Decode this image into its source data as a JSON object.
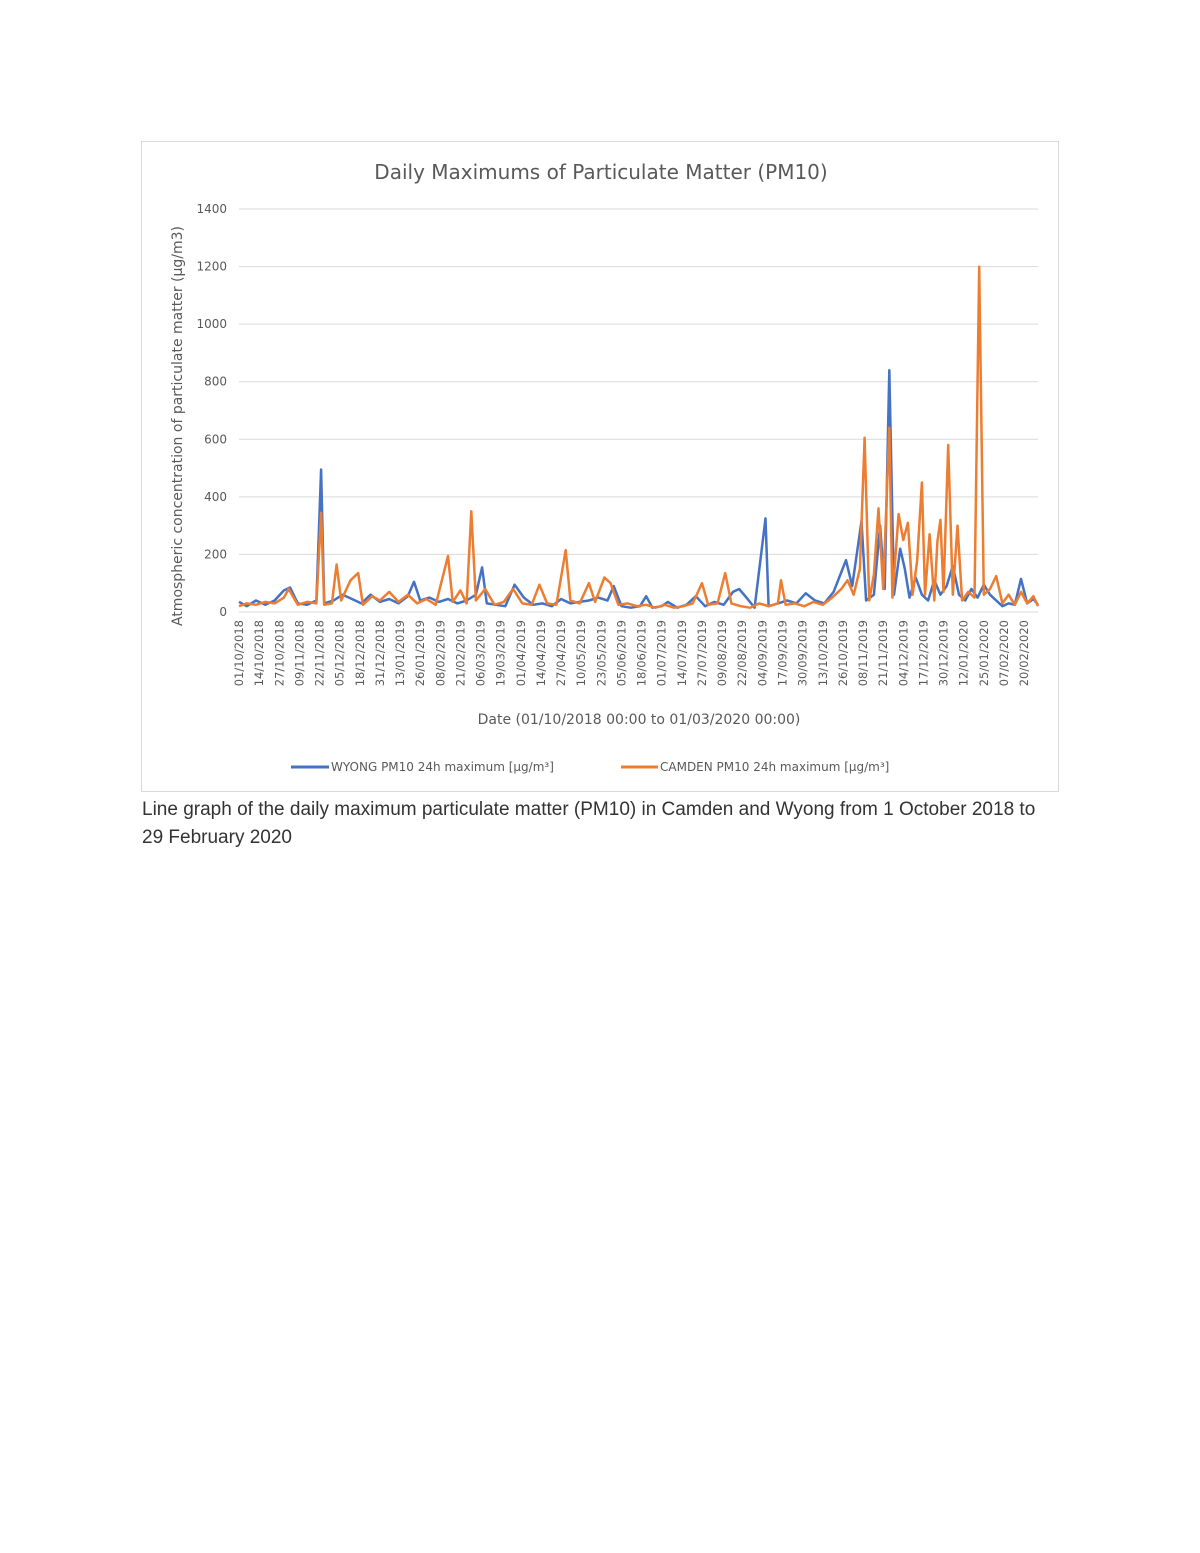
{
  "caption": "Line graph of the daily maximum particulate matter (PM10) in Camden and Wyong from 1 October 2018 to 29 February 2020",
  "chart_data": {
    "type": "line",
    "title": "Daily Maximums of Particulate Matter (PM10)",
    "xlabel": "Date (01/10/2018 00:00 to 01/03/2020 00:00)",
    "ylabel": "Atmospheric concentration of particulate matter (µg/m3)",
    "xlim": [
      "01/10/2018",
      "29/02/2020"
    ],
    "ylim": [
      0,
      1400
    ],
    "yticks": [
      0,
      200,
      400,
      600,
      800,
      1000,
      1200,
      1400
    ],
    "xtick_labels": [
      "01/10/2018",
      "14/10/2018",
      "27/10/2018",
      "09/11/2018",
      "22/11/2018",
      "05/12/2018",
      "18/12/2018",
      "31/12/2018",
      "13/01/2019",
      "26/01/2019",
      "08/02/2019",
      "21/02/2019",
      "06/03/2019",
      "19/03/2019",
      "01/04/2019",
      "14/04/2019",
      "27/04/2019",
      "10/05/2019",
      "23/05/2019",
      "05/06/2019",
      "18/06/2019",
      "01/07/2019",
      "14/07/2019",
      "27/07/2019",
      "09/08/2019",
      "22/08/2019",
      "04/09/2019",
      "17/09/2019",
      "30/09/2019",
      "13/10/2019",
      "26/10/2019",
      "08/11/2019",
      "21/11/2019",
      "04/12/2019",
      "17/12/2019",
      "30/12/2019",
      "12/01/2020",
      "25/01/2020",
      "07/02/2020",
      "20/02/2020"
    ],
    "grid": true,
    "legend_position": "bottom",
    "series": [
      {
        "name": "WYONG PM10 24h maximum [µg/m³]",
        "color": "#4472c4",
        "points": [
          [
            "01/10/2018",
            35
          ],
          [
            "06/10/2018",
            20
          ],
          [
            "12/10/2018",
            40
          ],
          [
            "18/10/2018",
            25
          ],
          [
            "24/10/2018",
            40
          ],
          [
            "30/10/2018",
            75
          ],
          [
            "03/11/2018",
            85
          ],
          [
            "08/11/2018",
            30
          ],
          [
            "14/11/2018",
            25
          ],
          [
            "20/11/2018",
            40
          ],
          [
            "23/11/2018",
            495
          ],
          [
            "25/11/2018",
            30
          ],
          [
            "01/12/2018",
            40
          ],
          [
            "07/12/2018",
            60
          ],
          [
            "13/12/2018",
            45
          ],
          [
            "19/12/2018",
            30
          ],
          [
            "25/12/2018",
            60
          ],
          [
            "31/12/2018",
            35
          ],
          [
            "06/01/2019",
            45
          ],
          [
            "12/01/2019",
            30
          ],
          [
            "18/01/2019",
            55
          ],
          [
            "22/01/2019",
            105
          ],
          [
            "26/01/2019",
            40
          ],
          [
            "01/02/2019",
            50
          ],
          [
            "07/02/2019",
            35
          ],
          [
            "13/02/2019",
            45
          ],
          [
            "19/02/2019",
            30
          ],
          [
            "25/02/2019",
            40
          ],
          [
            "03/03/2019",
            60
          ],
          [
            "07/03/2019",
            155
          ],
          [
            "10/03/2019",
            30
          ],
          [
            "16/03/2019",
            25
          ],
          [
            "22/03/2019",
            20
          ],
          [
            "28/03/2019",
            95
          ],
          [
            "03/04/2019",
            50
          ],
          [
            "09/04/2019",
            25
          ],
          [
            "15/04/2019",
            30
          ],
          [
            "21/04/2019",
            20
          ],
          [
            "27/04/2019",
            45
          ],
          [
            "03/05/2019",
            30
          ],
          [
            "09/05/2019",
            35
          ],
          [
            "15/05/2019",
            40
          ],
          [
            "21/05/2019",
            50
          ],
          [
            "27/05/2019",
            40
          ],
          [
            "31/05/2019",
            90
          ],
          [
            "05/06/2019",
            20
          ],
          [
            "11/06/2019",
            15
          ],
          [
            "17/06/2019",
            20
          ],
          [
            "21/06/2019",
            55
          ],
          [
            "25/06/2019",
            15
          ],
          [
            "01/07/2019",
            20
          ],
          [
            "05/07/2019",
            35
          ],
          [
            "11/07/2019",
            15
          ],
          [
            "17/07/2019",
            25
          ],
          [
            "23/07/2019",
            55
          ],
          [
            "29/07/2019",
            20
          ],
          [
            "04/08/2019",
            35
          ],
          [
            "10/08/2019",
            25
          ],
          [
            "16/08/2019",
            70
          ],
          [
            "20/08/2019",
            80
          ],
          [
            "24/08/2019",
            55
          ],
          [
            "30/08/2019",
            15
          ],
          [
            "06/09/2019",
            325
          ],
          [
            "08/09/2019",
            20
          ],
          [
            "14/09/2019",
            30
          ],
          [
            "20/09/2019",
            40
          ],
          [
            "26/09/2019",
            30
          ],
          [
            "02/10/2019",
            65
          ],
          [
            "08/10/2019",
            40
          ],
          [
            "14/10/2019",
            30
          ],
          [
            "20/10/2019",
            70
          ],
          [
            "24/10/2019",
            125
          ],
          [
            "28/10/2019",
            180
          ],
          [
            "01/11/2019",
            90
          ],
          [
            "07/11/2019",
            315
          ],
          [
            "10/11/2019",
            40
          ],
          [
            "15/11/2019",
            60
          ],
          [
            "19/11/2019",
            300
          ],
          [
            "22/11/2019",
            80
          ],
          [
            "25/11/2019",
            840
          ],
          [
            "28/11/2019",
            60
          ],
          [
            "02/12/2019",
            220
          ],
          [
            "05/12/2019",
            150
          ],
          [
            "08/12/2019",
            50
          ],
          [
            "12/12/2019",
            120
          ],
          [
            "16/12/2019",
            60
          ],
          [
            "20/12/2019",
            40
          ],
          [
            "24/12/2019",
            110
          ],
          [
            "28/12/2019",
            60
          ],
          [
            "01/01/2020",
            90
          ],
          [
            "05/01/2020",
            160
          ],
          [
            "09/01/2020",
            60
          ],
          [
            "13/01/2020",
            40
          ],
          [
            "17/01/2020",
            80
          ],
          [
            "21/01/2020",
            50
          ],
          [
            "25/01/2020",
            95
          ],
          [
            "29/01/2020",
            60
          ],
          [
            "02/02/2020",
            40
          ],
          [
            "06/02/2020",
            20
          ],
          [
            "10/02/2020",
            30
          ],
          [
            "14/02/2020",
            25
          ],
          [
            "18/02/2020",
            115
          ],
          [
            "22/02/2020",
            30
          ],
          [
            "26/02/2020",
            45
          ],
          [
            "29/02/2020",
            25
          ]
        ]
      },
      {
        "name": "CAMDEN PM10 24h maximum [µg/m³]",
        "color": "#ed7d31",
        "points": [
          [
            "01/10/2018",
            20
          ],
          [
            "06/10/2018",
            30
          ],
          [
            "12/10/2018",
            25
          ],
          [
            "18/10/2018",
            35
          ],
          [
            "24/10/2018",
            30
          ],
          [
            "30/10/2018",
            50
          ],
          [
            "02/11/2018",
            80
          ],
          [
            "08/11/2018",
            25
          ],
          [
            "14/11/2018",
            35
          ],
          [
            "20/11/2018",
            30
          ],
          [
            "23/11/2018",
            345
          ],
          [
            "25/11/2018",
            25
          ],
          [
            "30/11/2018",
            30
          ],
          [
            "03/12/2018",
            165
          ],
          [
            "06/12/2018",
            40
          ],
          [
            "12/12/2018",
            110
          ],
          [
            "17/12/2018",
            135
          ],
          [
            "20/12/2018",
            25
          ],
          [
            "26/12/2018",
            55
          ],
          [
            "31/12/2018",
            40
          ],
          [
            "06/01/2019",
            70
          ],
          [
            "12/01/2019",
            35
          ],
          [
            "18/01/2019",
            60
          ],
          [
            "24/01/2019",
            30
          ],
          [
            "30/01/2019",
            45
          ],
          [
            "05/02/2019",
            25
          ],
          [
            "13/02/2019",
            195
          ],
          [
            "16/02/2019",
            35
          ],
          [
            "21/02/2019",
            75
          ],
          [
            "25/02/2019",
            30
          ],
          [
            "28/02/2019",
            350
          ],
          [
            "03/03/2019",
            40
          ],
          [
            "09/03/2019",
            80
          ],
          [
            "15/03/2019",
            25
          ],
          [
            "21/03/2019",
            35
          ],
          [
            "27/03/2019",
            80
          ],
          [
            "02/04/2019",
            30
          ],
          [
            "08/04/2019",
            25
          ],
          [
            "13/04/2019",
            95
          ],
          [
            "18/04/2019",
            30
          ],
          [
            "24/04/2019",
            25
          ],
          [
            "30/04/2019",
            215
          ],
          [
            "03/05/2019",
            40
          ],
          [
            "09/05/2019",
            30
          ],
          [
            "15/05/2019",
            100
          ],
          [
            "19/05/2019",
            35
          ],
          [
            "25/05/2019",
            120
          ],
          [
            "29/05/2019",
            100
          ],
          [
            "03/06/2019",
            25
          ],
          [
            "09/06/2019",
            30
          ],
          [
            "15/06/2019",
            20
          ],
          [
            "21/06/2019",
            25
          ],
          [
            "27/06/2019",
            15
          ],
          [
            "03/07/2019",
            25
          ],
          [
            "09/07/2019",
            15
          ],
          [
            "15/07/2019",
            20
          ],
          [
            "21/07/2019",
            30
          ],
          [
            "27/07/2019",
            100
          ],
          [
            "31/07/2019",
            25
          ],
          [
            "06/08/2019",
            30
          ],
          [
            "11/08/2019",
            135
          ],
          [
            "15/08/2019",
            30
          ],
          [
            "21/08/2019",
            20
          ],
          [
            "27/08/2019",
            15
          ],
          [
            "02/09/2019",
            30
          ],
          [
            "08/09/2019",
            20
          ],
          [
            "14/09/2019",
            30
          ],
          [
            "16/09/2019",
            110
          ],
          [
            "19/09/2019",
            25
          ],
          [
            "25/09/2019",
            30
          ],
          [
            "01/10/2019",
            20
          ],
          [
            "07/10/2019",
            35
          ],
          [
            "13/10/2019",
            25
          ],
          [
            "19/10/2019",
            50
          ],
          [
            "25/10/2019",
            80
          ],
          [
            "29/10/2019",
            110
          ],
          [
            "02/11/2019",
            60
          ],
          [
            "06/11/2019",
            150
          ],
          [
            "09/11/2019",
            605
          ],
          [
            "12/11/2019",
            40
          ],
          [
            "15/11/2019",
            130
          ],
          [
            "18/11/2019",
            360
          ],
          [
            "21/11/2019",
            80
          ],
          [
            "25/11/2019",
            640
          ],
          [
            "27/11/2019",
            50
          ],
          [
            "01/12/2019",
            340
          ],
          [
            "04/12/2019",
            250
          ],
          [
            "07/12/2019",
            310
          ],
          [
            "10/12/2019",
            60
          ],
          [
            "13/12/2019",
            180
          ],
          [
            "16/12/2019",
            450
          ],
          [
            "18/12/2019",
            60
          ],
          [
            "21/12/2019",
            270
          ],
          [
            "24/12/2019",
            40
          ],
          [
            "26/12/2019",
            245
          ],
          [
            "28/12/2019",
            320
          ],
          [
            "30/12/2019",
            70
          ],
          [
            "02/01/2020",
            580
          ],
          [
            "05/01/2020",
            60
          ],
          [
            "08/01/2020",
            300
          ],
          [
            "11/01/2020",
            40
          ],
          [
            "15/01/2020",
            70
          ],
          [
            "19/01/2020",
            50
          ],
          [
            "22/01/2020",
            1200
          ],
          [
            "25/01/2020",
            60
          ],
          [
            "29/01/2020",
            80
          ],
          [
            "02/02/2020",
            125
          ],
          [
            "06/02/2020",
            30
          ],
          [
            "10/02/2020",
            60
          ],
          [
            "14/02/2020",
            25
          ],
          [
            "18/02/2020",
            70
          ],
          [
            "22/02/2020",
            30
          ],
          [
            "26/02/2020",
            55
          ],
          [
            "29/02/2020",
            20
          ]
        ]
      }
    ]
  }
}
